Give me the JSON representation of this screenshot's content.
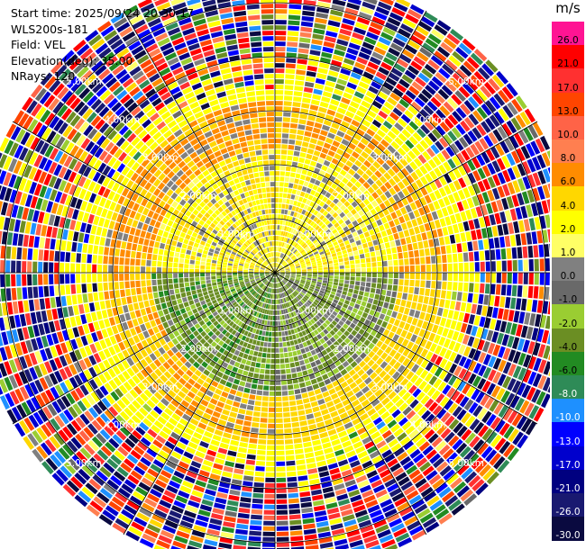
{
  "info": {
    "start_time": "Start time: 2025/09/24 20:30:17",
    "instrument": "WLS200s-181",
    "field": "Field: VEL",
    "elevation": "Elevation(deg): 35.00",
    "nrays": "NRays: 120"
  },
  "colorbar": {
    "unit": "m/s",
    "labels": [
      "26.0",
      "21.0",
      "17.0",
      "13.0",
      "10.0",
      "8.0",
      "6.0",
      "4.0",
      "2.0",
      "1.0",
      "0.0",
      "-1.0",
      "-2.0",
      "-4.0",
      "-6.0",
      "-8.0",
      "-10.0",
      "-13.0",
      "-17.0",
      "-21.0",
      "-26.0",
      "-30.0"
    ],
    "colors": [
      "#ff1493",
      "#ff0000",
      "#ff3030",
      "#ff4500",
      "#ff6347",
      "#ff7f50",
      "#ff8c00",
      "#ffd700",
      "#ffff00",
      "#ffff66",
      "#808080",
      "#696969",
      "#9acd32",
      "#6b8e23",
      "#228b22",
      "#2e8b57",
      "#1e90ff",
      "#0000ff",
      "#0000cd",
      "#000080",
      "#191970",
      "#0a0a40"
    ]
  },
  "chart_data": {
    "type": "heatmap",
    "subtype": "radar-ppi",
    "field": "VEL",
    "units": "m/s",
    "elevation_deg": 35.0,
    "n_rays": 120,
    "range_rings_km": [
      1.0,
      2.0,
      3.0,
      4.0,
      5.0
    ],
    "range_ring_labels": [
      "1.00km",
      "2.00km",
      "3.00km",
      "4.00km",
      "5.00km"
    ],
    "max_range_km": 5.6,
    "spoke_azimuths_deg": [
      0,
      30,
      60,
      90,
      120,
      150,
      180,
      210,
      240,
      270,
      300,
      330
    ],
    "color_scale_ms": [
      26.0,
      21.0,
      17.0,
      13.0,
      10.0,
      8.0,
      6.0,
      4.0,
      2.0,
      1.0,
      0.0,
      -1.0,
      -2.0,
      -4.0,
      -6.0,
      -8.0,
      -10.0,
      -13.0,
      -17.0,
      -21.0,
      -26.0,
      -30.0
    ],
    "field_pattern": {
      "inner_radius_km": 3.2,
      "noise_start_km": 4.1,
      "sectors": [
        {
          "azimuth_range_deg": [
            0,
            90
          ],
          "velocity_ms": 3.0
        },
        {
          "azimuth_range_deg": [
            90,
            180
          ],
          "velocity_ms": -2.0
        },
        {
          "azimuth_range_deg": [
            180,
            270
          ],
          "velocity_ms": -3.0
        },
        {
          "azimuth_range_deg": [
            270,
            360
          ],
          "velocity_ms": 3.5
        }
      ]
    }
  }
}
